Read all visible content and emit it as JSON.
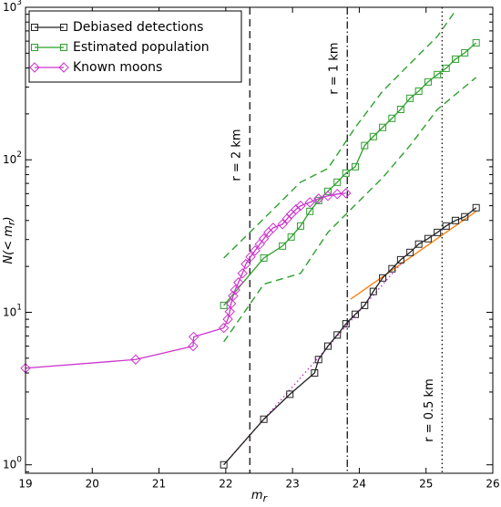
{
  "chart_data": {
    "type": "line",
    "log_y": true,
    "xlabel": {
      "main": "m",
      "sub": "r"
    },
    "ylabel": [
      "N(< m",
      "r",
      ")"
    ],
    "xlim": [
      19,
      26
    ],
    "xticks": [
      19,
      20,
      21,
      22,
      23,
      24,
      25,
      26
    ],
    "ylim": [
      0.88,
      1000
    ],
    "yticks": [
      {
        "value": 1,
        "label": "10^0"
      },
      {
        "value": 10,
        "label": "10^1"
      },
      {
        "value": 100,
        "label": "10^2"
      },
      {
        "value": 1000,
        "label": "10^3"
      }
    ],
    "legend": "top-left",
    "series": [
      {
        "name": "Debiased detections",
        "color": "#222222",
        "marker": "square",
        "x": [
          21.97,
          22.57,
          22.96,
          23.33,
          23.39,
          23.53,
          23.67,
          23.8,
          23.94,
          24.08,
          24.21,
          24.35,
          24.49,
          24.62,
          24.76,
          24.89,
          25.03,
          25.17,
          25.3,
          25.44,
          25.58,
          25.75
        ],
        "values": [
          1.0,
          1.99,
          2.9,
          4.0,
          4.9,
          6.0,
          7.1,
          8.4,
          9.7,
          11.1,
          13.7,
          16.8,
          19.3,
          22.1,
          24.7,
          28.0,
          30.4,
          33.4,
          36.8,
          40.0,
          42.3,
          48.5
        ]
      },
      {
        "name": "Estimated population",
        "color": "#2ca02c",
        "marker": "square",
        "x": [
          21.97,
          22.57,
          22.85,
          22.98,
          23.12,
          23.26,
          23.39,
          23.53,
          23.67,
          23.8,
          23.94,
          24.08,
          24.21,
          24.35,
          24.49,
          24.62,
          24.76,
          24.89,
          25.03,
          25.17,
          25.3,
          25.44,
          25.58,
          25.75
        ],
        "values": [
          11.1,
          22.7,
          27.2,
          31.2,
          36.8,
          45.9,
          54.1,
          62.1,
          71.3,
          81.8,
          90.1,
          124,
          142,
          163,
          187,
          214,
          253,
          282,
          324,
          362,
          398,
          457,
          503,
          585
        ]
      },
      {
        "name": "Known moons",
        "color": "#cc33cc",
        "marker": "diamond",
        "x": [
          19.0,
          20.65,
          21.51,
          21.52,
          21.97,
          22.03,
          22.06,
          22.08,
          22.11,
          22.14,
          22.19,
          22.25,
          22.3,
          22.37,
          22.44,
          22.51,
          22.57,
          22.64,
          22.71,
          22.85,
          22.92,
          22.98,
          23.05,
          23.12,
          23.26,
          23.39,
          23.53,
          23.67,
          23.8
        ],
        "values": [
          4.3,
          4.9,
          6.0,
          6.9,
          7.9,
          9.0,
          10.1,
          11.4,
          12.8,
          14.0,
          15.7,
          18.0,
          20.7,
          23.1,
          25.4,
          28.0,
          30.4,
          33.4,
          35.8,
          37.8,
          41.1,
          44.0,
          47.2,
          49.9,
          52.6,
          55.6,
          58.0,
          59.6,
          60.4
        ]
      }
    ],
    "extra_lines": [
      {
        "color": "#2ca02c",
        "style": "dashed",
        "x": [
          21.97,
          22.57,
          23.12,
          23.53,
          23.94,
          24.35,
          24.76,
          25.17,
          25.44
        ],
        "values": [
          22.7,
          41.1,
          71.3,
          87.7,
          163,
          282,
          427,
          645,
          948
        ]
      },
      {
        "color": "#2ca02c",
        "style": "dashed",
        "x": [
          21.97,
          22.57,
          23.12,
          23.53,
          23.94,
          24.35,
          24.76,
          25.17,
          25.75
        ],
        "values": [
          6.4,
          15.3,
          18.0,
          33.4,
          50.6,
          76.3,
          124,
          214,
          347
        ]
      },
      {
        "color": "#ff7f0e",
        "style": "solid",
        "x": [
          23.87,
          25.75
        ],
        "values": [
          12.2,
          45.9
        ]
      },
      {
        "color": "#cc33cc",
        "style": "dotted",
        "x": [
          21.97,
          24.62
        ],
        "values": [
          1.0,
          20.7
        ]
      }
    ],
    "vlines": [
      {
        "x": 22.36,
        "style": "dashed",
        "label": "r = 2 km"
      },
      {
        "x": 23.82,
        "style": "dashdot",
        "label": "r = 1 km"
      },
      {
        "x": 25.24,
        "style": "dotted",
        "label": "r = 0.5 km"
      }
    ]
  }
}
